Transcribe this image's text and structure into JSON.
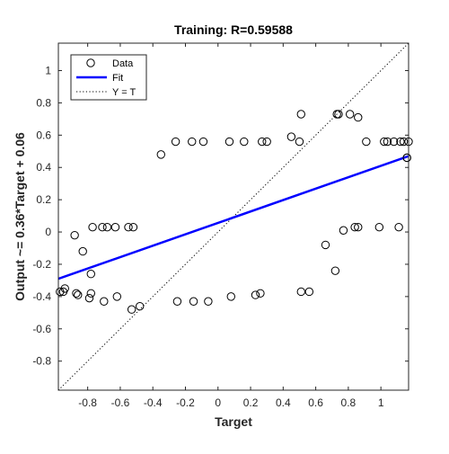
{
  "chart_data": {
    "type": "scatter",
    "title": "Training: R=0.59588",
    "xlabel": "Target",
    "ylabel": "Output ~= 0.36*Target + 0.06",
    "xlim": [
      -0.98,
      1.17
    ],
    "ylim": [
      -0.98,
      1.17
    ],
    "xticks": [
      -0.8,
      -0.6,
      -0.4,
      -0.2,
      0,
      0.2,
      0.4,
      0.6,
      0.8,
      1
    ],
    "xtick_labels": [
      "-0.8",
      "-0.6",
      "-0.4",
      "-0.2",
      "0",
      "0.2",
      "0.4",
      "0.6",
      "0.8",
      "1"
    ],
    "yticks": [
      -0.8,
      -0.6,
      -0.4,
      -0.2,
      0,
      0.2,
      0.4,
      0.6,
      0.8,
      1
    ],
    "ytick_labels": [
      "-0.8",
      "-0.6",
      "-0.4",
      "-0.2",
      "0",
      "0.2",
      "0.4",
      "0.6",
      "0.8",
      "1"
    ],
    "grid": false,
    "legend_position": "top-left",
    "series": [
      {
        "name": "Data",
        "style": "circle-marker",
        "color": "#000000",
        "points": [
          [
            -0.97,
            -0.37
          ],
          [
            -0.95,
            -0.37
          ],
          [
            -0.94,
            -0.35
          ],
          [
            -0.88,
            -0.02
          ],
          [
            -0.87,
            -0.38
          ],
          [
            -0.86,
            -0.39
          ],
          [
            -0.83,
            -0.12
          ],
          [
            -0.79,
            -0.41
          ],
          [
            -0.78,
            -0.38
          ],
          [
            -0.78,
            -0.26
          ],
          [
            -0.77,
            0.03
          ],
          [
            -0.71,
            0.03
          ],
          [
            -0.7,
            -0.43
          ],
          [
            -0.68,
            0.03
          ],
          [
            -0.63,
            0.03
          ],
          [
            -0.62,
            -0.4
          ],
          [
            -0.55,
            0.03
          ],
          [
            -0.53,
            -0.48
          ],
          [
            -0.52,
            0.03
          ],
          [
            -0.48,
            -0.46
          ],
          [
            -0.35,
            0.48
          ],
          [
            -0.26,
            0.56
          ],
          [
            -0.25,
            -0.43
          ],
          [
            -0.16,
            0.56
          ],
          [
            -0.15,
            -0.43
          ],
          [
            -0.09,
            0.56
          ],
          [
            -0.06,
            -0.43
          ],
          [
            0.07,
            0.56
          ],
          [
            0.08,
            -0.4
          ],
          [
            0.16,
            0.56
          ],
          [
            0.23,
            -0.39
          ],
          [
            0.26,
            -0.38
          ],
          [
            0.27,
            0.56
          ],
          [
            0.3,
            0.56
          ],
          [
            0.45,
            0.59
          ],
          [
            0.5,
            0.56
          ],
          [
            0.51,
            0.73
          ],
          [
            0.51,
            -0.37
          ],
          [
            0.56,
            -0.37
          ],
          [
            0.66,
            -0.08
          ],
          [
            0.72,
            -0.24
          ],
          [
            0.73,
            0.73
          ],
          [
            0.74,
            0.73
          ],
          [
            0.77,
            0.01
          ],
          [
            0.81,
            0.73
          ],
          [
            0.84,
            0.03
          ],
          [
            0.86,
            0.03
          ],
          [
            0.86,
            0.71
          ],
          [
            0.91,
            0.56
          ],
          [
            0.99,
            0.03
          ],
          [
            1.02,
            0.56
          ],
          [
            1.04,
            0.56
          ],
          [
            1.08,
            0.56
          ],
          [
            1.11,
            0.03
          ],
          [
            1.12,
            0.56
          ],
          [
            1.14,
            0.56
          ],
          [
            1.16,
            0.46
          ],
          [
            1.16,
            0.46
          ],
          [
            1.17,
            0.56
          ]
        ]
      },
      {
        "name": "Fit",
        "style": "solid-line",
        "color": "#0000ff",
        "points": [
          [
            -0.98,
            -0.29
          ],
          [
            1.17,
            0.47
          ]
        ]
      },
      {
        "name": "Y = T",
        "style": "dotted-line",
        "color": "#000000",
        "points": [
          [
            -0.98,
            -0.98
          ],
          [
            1.17,
            1.17
          ]
        ]
      }
    ]
  }
}
